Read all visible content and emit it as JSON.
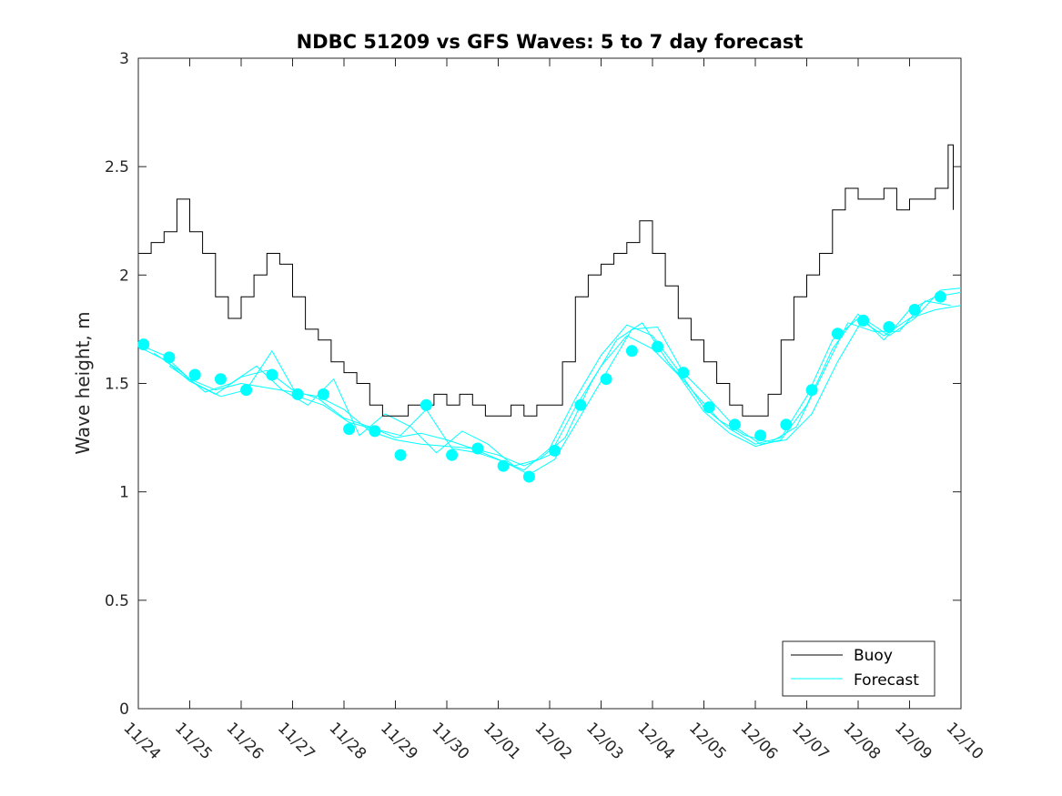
{
  "chart_data": {
    "type": "line",
    "title": "NDBC 51209 vs GFS Waves: 5 to 7 day forecast",
    "xlabel": "",
    "ylabel": "Wave height, m",
    "xlim": [
      0,
      16
    ],
    "ylim": [
      0,
      3
    ],
    "x_tick_labels": [
      "11/24",
      "11/25",
      "11/26",
      "11/27",
      "11/28",
      "11/29",
      "11/30",
      "12/01",
      "12/02",
      "12/03",
      "12/04",
      "12/05",
      "12/06",
      "12/07",
      "12/08",
      "12/09",
      "12/10"
    ],
    "y_ticks": [
      0,
      0.5,
      1,
      1.5,
      2,
      2.5,
      3
    ],
    "y_tick_labels": [
      "0",
      "0.5",
      "1",
      "1.5",
      "2",
      "2.5",
      "3"
    ],
    "grid": false,
    "legend_position": "bottom-right",
    "legend": [
      "Buoy",
      "Forecast"
    ],
    "colors": {
      "buoy": "#000000",
      "forecast": "#00ffff"
    },
    "buoy": {
      "name": "Buoy",
      "x": [
        0.0,
        0.25,
        0.5,
        0.75,
        1.0,
        1.25,
        1.5,
        1.75,
        2.0,
        2.25,
        2.5,
        2.75,
        3.0,
        3.25,
        3.5,
        3.75,
        4.0,
        4.25,
        4.5,
        4.75,
        5.0,
        5.25,
        5.5,
        5.75,
        6.0,
        6.25,
        6.5,
        6.75,
        7.0,
        7.25,
        7.5,
        7.75,
        8.0,
        8.25,
        8.5,
        8.75,
        9.0,
        9.25,
        9.5,
        9.75,
        10.0,
        10.25,
        10.5,
        10.75,
        11.0,
        11.25,
        11.5,
        11.75,
        12.0,
        12.25,
        12.5,
        12.75,
        13.0,
        13.25,
        13.5,
        13.75,
        14.0,
        14.25,
        14.5,
        14.75,
        15.0,
        15.25,
        15.5,
        15.75,
        15.85
      ],
      "y": [
        2.1,
        2.15,
        2.2,
        2.35,
        2.2,
        2.1,
        1.9,
        1.8,
        1.9,
        2.0,
        2.1,
        2.05,
        1.9,
        1.75,
        1.7,
        1.6,
        1.55,
        1.5,
        1.4,
        1.35,
        1.35,
        1.4,
        1.4,
        1.45,
        1.4,
        1.45,
        1.4,
        1.35,
        1.35,
        1.4,
        1.35,
        1.4,
        1.4,
        1.6,
        1.9,
        2.0,
        2.05,
        2.1,
        2.15,
        2.25,
        2.1,
        1.95,
        1.8,
        1.7,
        1.6,
        1.5,
        1.4,
        1.35,
        1.35,
        1.45,
        1.7,
        1.9,
        2.0,
        2.1,
        2.3,
        2.4,
        2.35,
        2.35,
        2.4,
        2.3,
        2.35,
        2.35,
        2.4,
        2.6,
        2.3
      ]
    },
    "forecast_markers": {
      "name": "Forecast (analysis points)",
      "x": [
        0.1,
        0.6,
        1.1,
        1.6,
        2.1,
        2.6,
        3.1,
        3.6,
        4.1,
        4.6,
        5.1,
        5.6,
        6.1,
        6.6,
        7.1,
        7.6,
        8.1,
        8.6,
        9.1,
        9.6,
        10.1,
        10.6,
        11.1,
        11.6,
        12.1,
        12.6,
        13.1,
        13.6,
        14.1,
        14.6,
        15.1,
        15.6
      ],
      "y": [
        1.68,
        1.62,
        1.54,
        1.52,
        1.47,
        1.54,
        1.45,
        1.45,
        1.29,
        1.28,
        1.17,
        1.4,
        1.17,
        1.2,
        1.12,
        1.07,
        1.19,
        1.4,
        1.52,
        1.65,
        1.67,
        1.55,
        1.39,
        1.31,
        1.26,
        1.31,
        1.47,
        1.73,
        1.79,
        1.76,
        1.84,
        1.9
      ]
    },
    "series": [
      {
        "name": "Forecast",
        "x": [
          0.0,
          0.5,
          1.0,
          1.5,
          2.0,
          2.5,
          3.0,
          3.5,
          4.0,
          4.5,
          5.0,
          5.5,
          6.0,
          6.5,
          7.0,
          7.5,
          8.0,
          8.5,
          9.0,
          9.5,
          10.0,
          10.5,
          11.0,
          11.5,
          12.0,
          12.5,
          13.0,
          13.5,
          14.0,
          14.5,
          15.0,
          15.5,
          16.0
        ],
        "y": [
          1.68,
          1.63,
          1.52,
          1.47,
          1.5,
          1.48,
          1.46,
          1.44,
          1.38,
          1.28,
          1.24,
          1.22,
          1.21,
          1.2,
          1.15,
          1.1,
          1.2,
          1.43,
          1.63,
          1.77,
          1.72,
          1.56,
          1.39,
          1.29,
          1.22,
          1.25,
          1.44,
          1.7,
          1.8,
          1.72,
          1.8,
          1.84,
          1.86
        ]
      },
      {
        "name": "Forecast",
        "x": [
          0.0,
          0.5,
          1.0,
          1.5,
          2.0,
          2.5,
          3.0,
          3.5,
          4.0,
          4.5,
          5.0,
          5.5,
          6.0,
          6.5,
          7.0,
          7.5,
          8.0,
          8.5,
          9.0,
          9.5,
          10.0,
          10.5,
          11.0,
          11.5,
          12.0,
          12.5,
          13.0,
          13.5,
          14.0,
          14.5,
          15.0,
          15.5,
          16.0
        ],
        "y": [
          1.67,
          1.61,
          1.51,
          1.45,
          1.53,
          1.56,
          1.47,
          1.43,
          1.34,
          1.3,
          1.25,
          1.27,
          1.24,
          1.2,
          1.17,
          1.12,
          1.17,
          1.39,
          1.58,
          1.72,
          1.66,
          1.54,
          1.37,
          1.27,
          1.21,
          1.24,
          1.4,
          1.66,
          1.82,
          1.7,
          1.84,
          1.9,
          1.92
        ]
      },
      {
        "name": "Forecast",
        "x": [
          0.3,
          0.8,
          1.3,
          1.8,
          2.3,
          2.8,
          3.3,
          3.8,
          4.3,
          4.8,
          5.3,
          5.8,
          6.3,
          6.8,
          7.3,
          7.8,
          8.3,
          8.8,
          9.3,
          9.8,
          10.3,
          10.8,
          11.3,
          11.8,
          12.3,
          12.8,
          13.3,
          13.8,
          14.3,
          14.8,
          15.3,
          15.8
        ],
        "y": [
          1.64,
          1.56,
          1.46,
          1.5,
          1.58,
          1.47,
          1.4,
          1.52,
          1.26,
          1.36,
          1.3,
          1.18,
          1.28,
          1.22,
          1.12,
          1.15,
          1.25,
          1.5,
          1.7,
          1.78,
          1.6,
          1.46,
          1.33,
          1.26,
          1.23,
          1.3,
          1.54,
          1.78,
          1.74,
          1.74,
          1.88,
          1.86
        ]
      },
      {
        "name": "Forecast",
        "x": [
          0.6,
          1.1,
          1.6,
          2.1,
          2.6,
          3.1,
          3.6,
          4.1,
          4.6,
          5.1,
          5.6,
          6.1,
          6.6,
          7.1,
          7.6,
          8.1,
          8.6,
          9.1,
          9.6,
          10.1,
          10.6,
          11.1,
          11.6,
          12.1,
          12.6,
          13.1,
          13.6,
          14.1,
          14.6,
          15.1,
          15.6,
          16.0
        ],
        "y": [
          1.58,
          1.5,
          1.44,
          1.47,
          1.65,
          1.44,
          1.4,
          1.32,
          1.29,
          1.26,
          1.38,
          1.2,
          1.18,
          1.14,
          1.08,
          1.15,
          1.35,
          1.55,
          1.75,
          1.76,
          1.55,
          1.43,
          1.3,
          1.22,
          1.24,
          1.36,
          1.6,
          1.8,
          1.72,
          1.8,
          1.93,
          1.94
        ]
      }
    ]
  }
}
